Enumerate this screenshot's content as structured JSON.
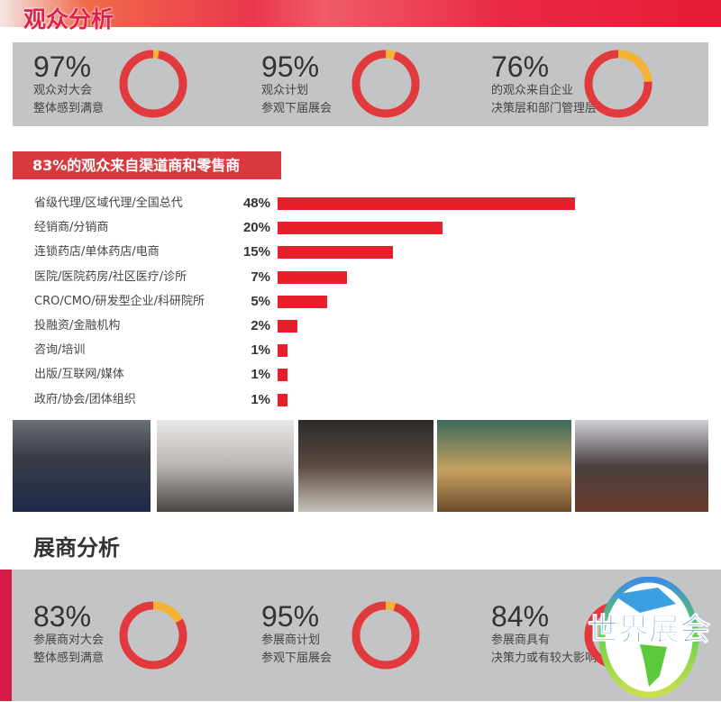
{
  "header": {
    "title": "观众分析"
  },
  "visitor_stats": [
    {
      "percent": "97%",
      "value": 97,
      "line1": "观众对大会",
      "line2": "整体感到满意"
    },
    {
      "percent": "95%",
      "value": 95,
      "line1": "观众计划",
      "line2": "参观下届展会"
    },
    {
      "percent": "76%",
      "value": 76,
      "line1": "的观众来自企业",
      "line2": "决策层和部门管理层"
    }
  ],
  "channel_tag": "83%的观众来自渠道商和零售商",
  "chart_data": {
    "type": "bar",
    "orientation": "horizontal",
    "categories": [
      "省级代理/区域代理/全国总代",
      "经销商/分销商",
      "连锁药店/单体药店/电商",
      "医院/医院药房/社区医疗/诊所",
      "CRO/CMO/研发型企业/科研院所",
      "投融资/金融机构",
      "咨询/培训",
      "出版/互联网/媒体",
      "政府/协会/团体组织"
    ],
    "values": [
      48,
      20,
      15,
      7,
      5,
      2,
      1,
      1,
      1
    ],
    "labels": [
      "48%",
      "20%",
      "15%",
      "7%",
      "5%",
      "2%",
      "1%",
      "1%",
      "1%"
    ],
    "bar_color": "#e8202b"
  },
  "photos": [
    "会议现场",
    "洽谈区",
    "展位交流",
    "展品展示",
    "观众参观"
  ],
  "exhibitor_section": {
    "title": "展商分析"
  },
  "exhibitor_stats": [
    {
      "percent": "83%",
      "value": 83,
      "line1": "参展商对大会",
      "line2": "整体感到满意"
    },
    {
      "percent": "95%",
      "value": 95,
      "line1": "参展商计划",
      "line2": "参观下届展会"
    },
    {
      "percent": "84%",
      "value": 84,
      "line1": "参展商具有",
      "line2": "决策力或有较大影响"
    }
  ],
  "watermark": "世界展会",
  "colors": {
    "ring": "#e0393e",
    "ring_rest": "#f5b335",
    "panel": "#c3c4c6",
    "accent": "#d93a3f"
  }
}
